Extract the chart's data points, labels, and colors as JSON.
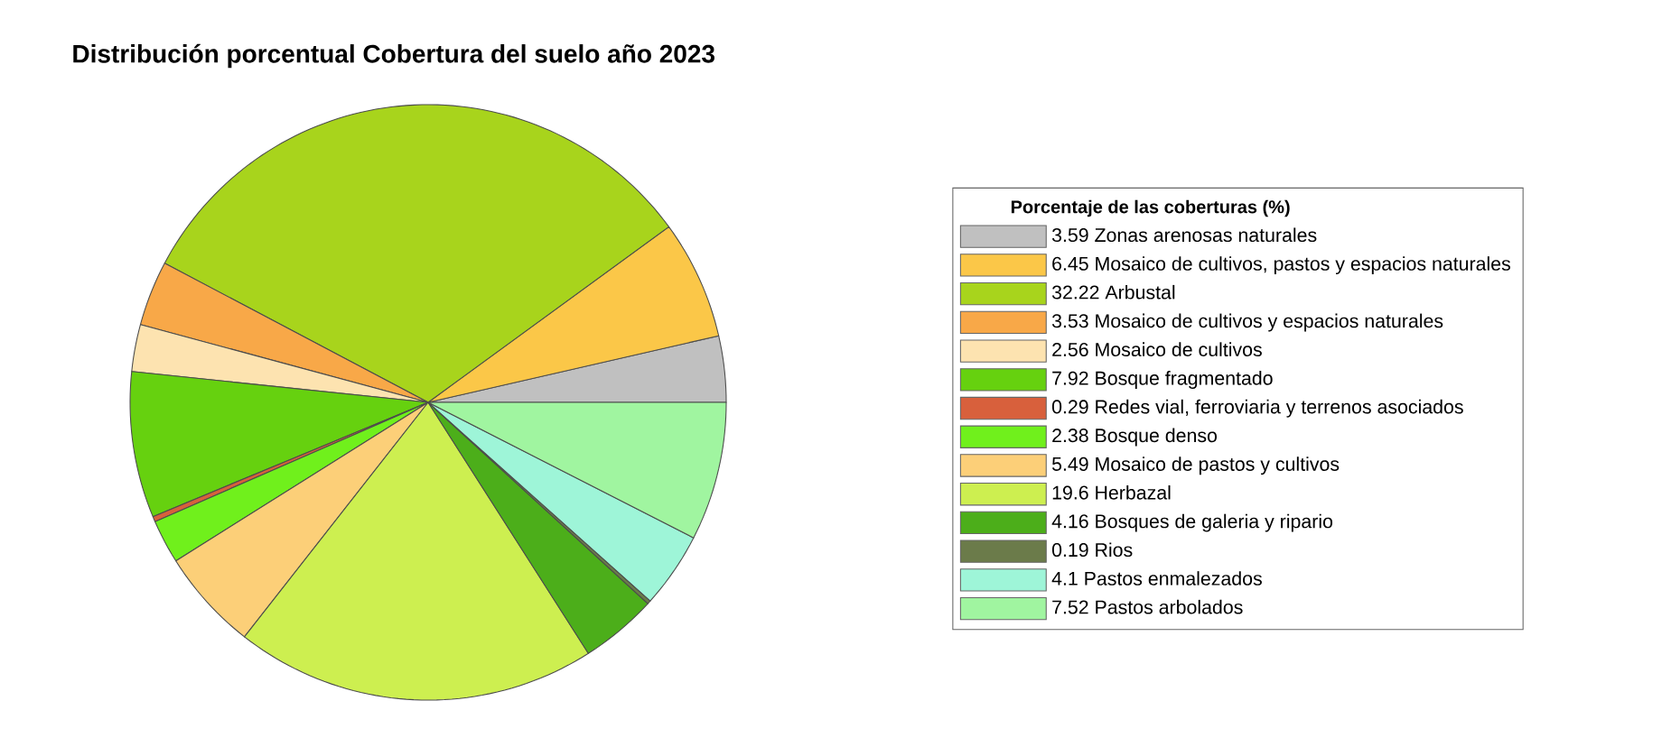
{
  "chart_data": {
    "type": "pie",
    "title": "Distribución porcentual Cobertura del suelo año 2023",
    "legend_title": "Porcentaje de las coberturas (%)",
    "legend": "right",
    "categories": [
      "3.59 Zonas arenosas naturales",
      "6.45 Mosaico de cultivos, pastos y espacios naturales",
      "32.22 Arbustal",
      "3.53 Mosaico de cultivos y espacios naturales",
      "2.56 Mosaico de cultivos",
      "7.92 Bosque fragmentado",
      "0.29 Redes vial, ferroviaria y terrenos asociados",
      "2.38 Bosque denso",
      "5.49 Mosaico de pastos y cultivos",
      "19.6 Herbazal",
      "4.16 Bosques de galeria y ripario",
      "0.19 Rios",
      "4.1 Pastos enmalezados",
      "7.52 Pastos arbolados"
    ],
    "values": [
      3.59,
      6.45,
      32.22,
      3.53,
      2.56,
      7.92,
      0.29,
      2.38,
      5.49,
      19.6,
      4.16,
      0.19,
      4.1,
      7.52
    ],
    "colors": [
      "#c0c0c0",
      "#fbc748",
      "#a8d41c",
      "#f8a848",
      "#fde3b0",
      "#66d10f",
      "#d8603c",
      "#70f01c",
      "#fccf78",
      "#cdef50",
      "#4cae1a",
      "#6b7b4a",
      "#9ef5d8",
      "#a0f5a0"
    ]
  }
}
